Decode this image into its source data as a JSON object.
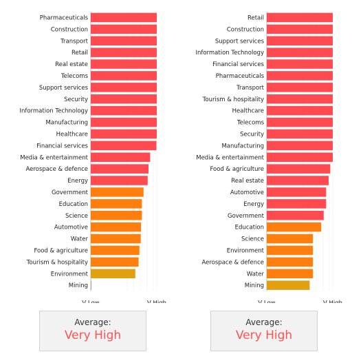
{
  "colors": {
    "very_high": "#ff4a4f",
    "high": "#ff7f0e",
    "medium": "#e0a010",
    "low": "#b0b0b0"
  },
  "chart_data": [
    {
      "type": "bar",
      "orientation": "horizontal",
      "xlim": [
        0,
        4
      ],
      "x_ticks": [
        "V Low",
        "V High"
      ],
      "grid": true,
      "categories": [
        "Pharmaceuticals",
        "Construction",
        "Transport",
        "Retail",
        "Real estate",
        "Telecoms",
        "Support services",
        "Security",
        "Information Technology",
        "Manufacturing",
        "Healthcare",
        "Financial services",
        "Media & entertainment",
        "Aerospace & defence",
        "Energy",
        "Government",
        "Education",
        "Science",
        "Automotive",
        "Water",
        "Food & agriculture",
        "Tourism & hospitality",
        "Environment",
        "Mining"
      ],
      "values": [
        4,
        4,
        4,
        4,
        4,
        4,
        4,
        4,
        4,
        4,
        4,
        3.98,
        3.6,
        3.5,
        3.45,
        3.2,
        3.1,
        3.1,
        3.05,
        3.03,
        2.95,
        2.9,
        2.7,
        0.05
      ],
      "bar_levels": [
        "very_high",
        "very_high",
        "very_high",
        "very_high",
        "very_high",
        "very_high",
        "very_high",
        "very_high",
        "very_high",
        "very_high",
        "very_high",
        "very_high",
        "very_high",
        "very_high",
        "very_high",
        "high",
        "high",
        "high",
        "high",
        "high",
        "high",
        "high",
        "medium",
        "low"
      ],
      "average": {
        "label": "Average:",
        "value": "Very High"
      }
    },
    {
      "type": "bar",
      "orientation": "horizontal",
      "xlim": [
        0,
        4
      ],
      "x_ticks": [
        "V Low",
        "V High"
      ],
      "grid": true,
      "categories": [
        "Retail",
        "Construction",
        "Support services",
        "Information Technology",
        "Financial services",
        "Pharmaceuticals",
        "Transport",
        "Tourism & hospitality",
        "Healthcare",
        "Telecoms",
        "Security",
        "Manufacturing",
        "Media & entertainment",
        "Food & agriculture",
        "Real estate",
        "Automotive",
        "Energy",
        "Government",
        "Education",
        "Science",
        "Environment",
        "Aerospace & defence",
        "Water",
        "Mining"
      ],
      "values": [
        4,
        4,
        4,
        4,
        4,
        4,
        4,
        4,
        4,
        4,
        4,
        4,
        4,
        3.85,
        3.75,
        3.6,
        3.6,
        3.45,
        3.3,
        2.8,
        2.8,
        2.8,
        2.8,
        2.6
      ],
      "bar_levels": [
        "very_high",
        "very_high",
        "very_high",
        "very_high",
        "very_high",
        "very_high",
        "very_high",
        "very_high",
        "very_high",
        "very_high",
        "very_high",
        "very_high",
        "very_high",
        "very_high",
        "very_high",
        "very_high",
        "very_high",
        "very_high",
        "high",
        "high",
        "high",
        "high",
        "high",
        "medium"
      ],
      "average": {
        "label": "Average:",
        "value": "Very High"
      }
    }
  ]
}
